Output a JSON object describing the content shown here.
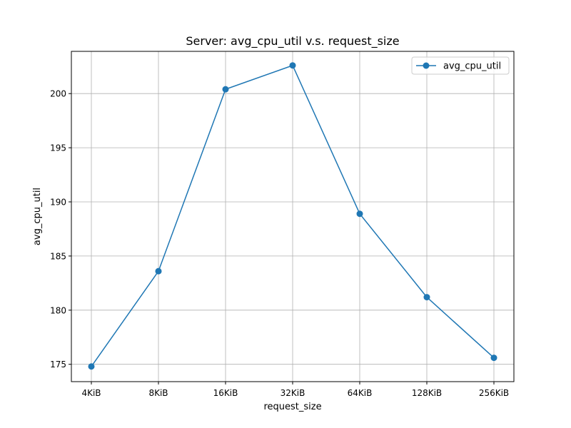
{
  "chart_data": {
    "type": "line",
    "title": "Server: avg_cpu_util v.s. request_size",
    "xlabel": "request_size",
    "ylabel": "avg_cpu_util",
    "categories": [
      "4KiB",
      "8KiB",
      "16KiB",
      "32KiB",
      "64KiB",
      "128KiB",
      "256KiB"
    ],
    "series": [
      {
        "name": "avg_cpu_util",
        "values": [
          174.8,
          183.6,
          200.4,
          202.6,
          188.9,
          181.2,
          175.6
        ],
        "color": "#1f77b4"
      }
    ],
    "yticks": [
      175,
      180,
      185,
      190,
      195,
      200
    ],
    "ylim": [
      173.4,
      203.9
    ],
    "grid": true,
    "legend_position": "top-right"
  }
}
